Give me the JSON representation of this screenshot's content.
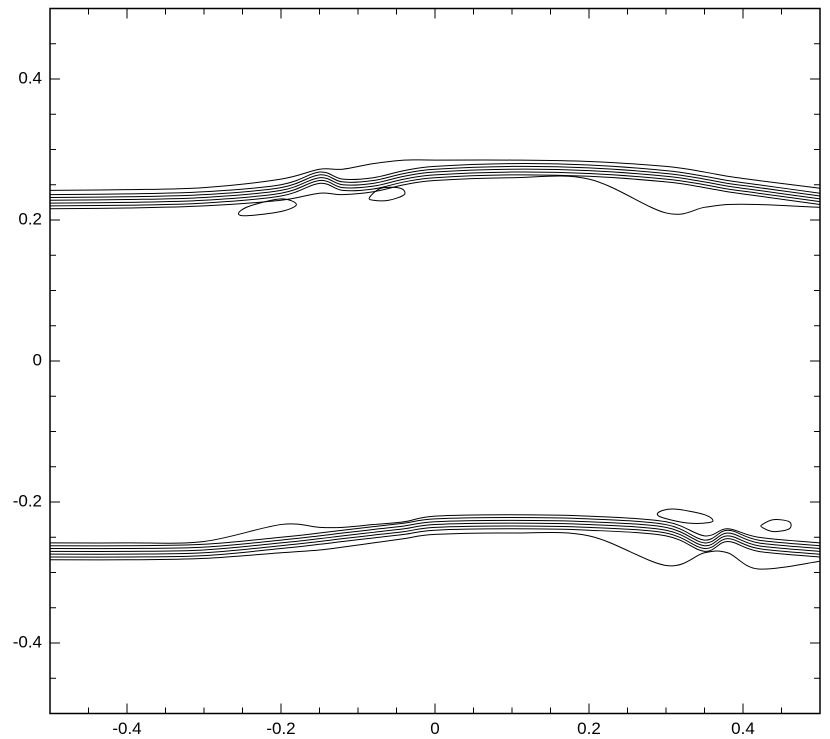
{
  "chart_data": {
    "type": "contour",
    "xlim": [
      -0.5,
      0.5
    ],
    "ylim": [
      -0.5,
      0.5
    ],
    "xticks": [
      -0.4,
      -0.2,
      0,
      0.2,
      0.4
    ],
    "yticks": [
      -0.4,
      -0.2,
      0,
      0.2,
      0.4
    ],
    "xminorticks": [
      -0.45,
      -0.35,
      -0.3,
      -0.25,
      -0.15,
      -0.1,
      -0.05,
      0.05,
      0.1,
      0.15,
      0.25,
      0.3,
      0.35,
      0.45
    ],
    "yminorticks": [
      -0.45,
      -0.35,
      -0.3,
      -0.25,
      -0.15,
      -0.1,
      -0.05,
      0.05,
      0.1,
      0.15,
      0.25,
      0.3,
      0.35,
      0.45
    ],
    "color": "#000000",
    "x": [
      -0.5,
      -0.4,
      -0.3,
      -0.2,
      -0.15,
      -0.12,
      -0.08,
      -0.04,
      0,
      0.1,
      0.2,
      0.3,
      0.35,
      0.38,
      0.42,
      0.5
    ],
    "series": [
      {
        "values": [
          0.242,
          0.243,
          0.246,
          0.258,
          0.272,
          0.272,
          0.28,
          0.285,
          0.285,
          0.285,
          0.283,
          0.276,
          0.268,
          0.262,
          0.256,
          0.245
        ]
      },
      {
        "values": [
          0.236,
          0.237,
          0.24,
          0.25,
          0.268,
          0.258,
          0.26,
          0.27,
          0.276,
          0.28,
          0.278,
          0.27,
          0.262,
          0.256,
          0.25,
          0.238
        ]
      },
      {
        "values": [
          0.232,
          0.233,
          0.236,
          0.246,
          0.264,
          0.254,
          0.256,
          0.266,
          0.272,
          0.276,
          0.274,
          0.266,
          0.258,
          0.252,
          0.246,
          0.234
        ]
      },
      {
        "values": [
          0.228,
          0.229,
          0.232,
          0.242,
          0.26,
          0.25,
          0.252,
          0.262,
          0.268,
          0.272,
          0.27,
          0.262,
          0.254,
          0.248,
          0.242,
          0.23
        ]
      },
      {
        "values": [
          0.224,
          0.225,
          0.228,
          0.238,
          0.256,
          0.246,
          0.248,
          0.258,
          0.264,
          0.268,
          0.266,
          0.258,
          0.25,
          0.244,
          0.238,
          0.226
        ]
      },
      {
        "values": [
          0.22,
          0.221,
          0.224,
          0.234,
          0.252,
          0.242,
          0.244,
          0.254,
          0.26,
          0.264,
          0.262,
          0.254,
          0.246,
          0.24,
          0.234,
          0.222
        ]
      },
      {
        "values": [
          0.216,
          0.217,
          0.22,
          0.228,
          0.238,
          0.236,
          0.24,
          0.25,
          0.256,
          0.26,
          0.258,
          0.21,
          0.218,
          0.222,
          0.222,
          0.218
        ]
      },
      {
        "values": [
          -0.258,
          -0.258,
          -0.256,
          -0.232,
          -0.236,
          -0.236,
          -0.232,
          -0.228,
          -0.22,
          -0.218,
          -0.22,
          -0.228,
          -0.248,
          -0.238,
          -0.25,
          -0.258
        ]
      },
      {
        "values": [
          -0.262,
          -0.262,
          -0.26,
          -0.25,
          -0.244,
          -0.24,
          -0.235,
          -0.23,
          -0.224,
          -0.222,
          -0.224,
          -0.232,
          -0.254,
          -0.24,
          -0.254,
          -0.262
        ]
      },
      {
        "values": [
          -0.266,
          -0.266,
          -0.264,
          -0.254,
          -0.248,
          -0.244,
          -0.239,
          -0.234,
          -0.228,
          -0.226,
          -0.228,
          -0.236,
          -0.258,
          -0.244,
          -0.258,
          -0.266
        ]
      },
      {
        "values": [
          -0.27,
          -0.27,
          -0.268,
          -0.258,
          -0.252,
          -0.248,
          -0.243,
          -0.238,
          -0.232,
          -0.23,
          -0.232,
          -0.24,
          -0.262,
          -0.248,
          -0.262,
          -0.27
        ]
      },
      {
        "values": [
          -0.274,
          -0.274,
          -0.272,
          -0.262,
          -0.256,
          -0.252,
          -0.247,
          -0.242,
          -0.236,
          -0.234,
          -0.236,
          -0.244,
          -0.266,
          -0.252,
          -0.266,
          -0.274
        ]
      },
      {
        "values": [
          -0.278,
          -0.278,
          -0.276,
          -0.266,
          -0.26,
          -0.256,
          -0.251,
          -0.246,
          -0.24,
          -0.238,
          -0.24,
          -0.248,
          -0.27,
          -0.256,
          -0.27,
          -0.278
        ]
      },
      {
        "values": [
          -0.282,
          -0.282,
          -0.28,
          -0.272,
          -0.268,
          -0.264,
          -0.258,
          -0.252,
          -0.246,
          -0.244,
          -0.248,
          -0.29,
          -0.272,
          -0.272,
          -0.295,
          -0.284
        ]
      }
    ],
    "loops": [
      {
        "x": [
          -0.255,
          -0.24,
          -0.2,
          -0.18,
          -0.2,
          -0.245
        ],
        "y": [
          0.21,
          0.22,
          0.23,
          0.222,
          0.212,
          0.206
        ]
      },
      {
        "x": [
          -0.085,
          -0.07,
          -0.045,
          -0.04,
          -0.06,
          -0.08
        ],
        "y": [
          0.232,
          0.245,
          0.245,
          0.236,
          0.228,
          0.228
        ]
      },
      {
        "x": [
          0.29,
          0.31,
          0.35,
          0.36,
          0.33,
          0.295
        ],
        "y": [
          -0.215,
          -0.21,
          -0.218,
          -0.228,
          -0.23,
          -0.222
        ]
      },
      {
        "x": [
          0.425,
          0.44,
          0.46,
          0.46,
          0.44,
          0.425
        ],
        "y": [
          -0.232,
          -0.225,
          -0.228,
          -0.238,
          -0.242,
          -0.236
        ]
      }
    ]
  }
}
